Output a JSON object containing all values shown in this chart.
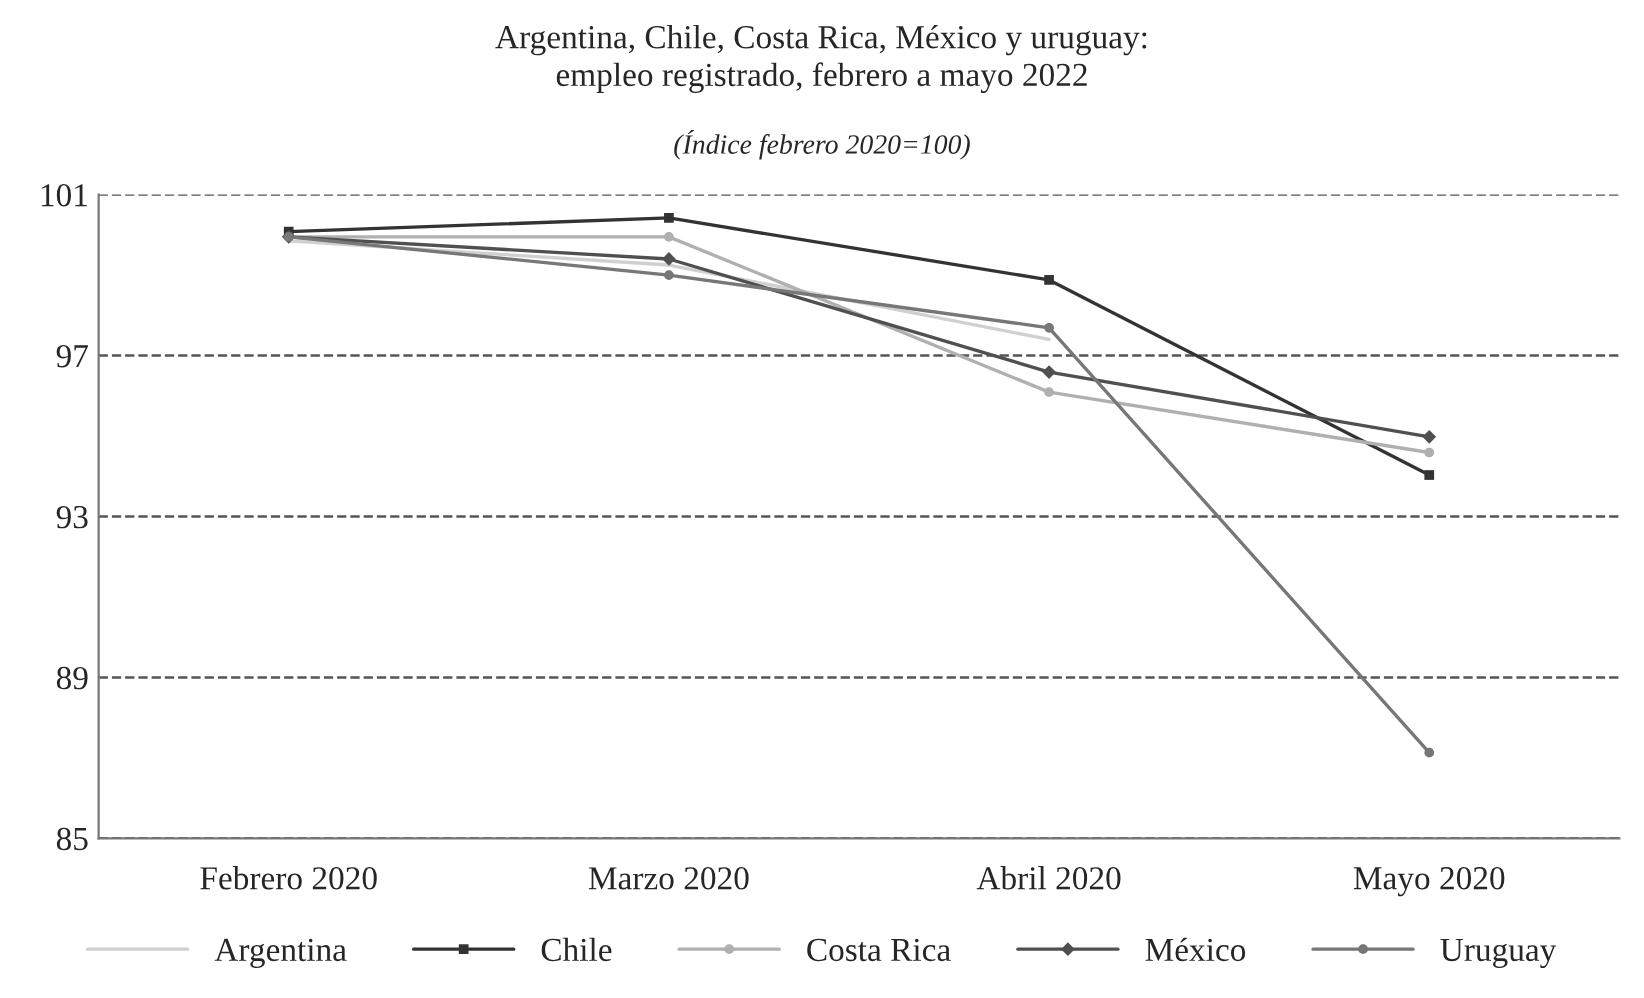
{
  "chart_data": {
    "type": "line",
    "title": "Argentina, Chile, Costa Rica, México y uruguay:\nempleo registrado, febrero a mayo 2022",
    "subtitle": "(Índice febrero 2020=100)",
    "categories": [
      "Febrero 2020",
      "Marzo 2020",
      "Abril 2020",
      "Mayo 2020"
    ],
    "series": [
      {
        "name": "Argentina",
        "color": "#d0d0d0",
        "marker": "none",
        "values": [
          99.85,
          99.25,
          97.4,
          null
        ]
      },
      {
        "name": "Chile",
        "color": "#333333",
        "marker": "square",
        "values": [
          100.08,
          100.42,
          98.88,
          94.03
        ]
      },
      {
        "name": "Costa Rica",
        "color": "#b0b0b0",
        "marker": "circle",
        "values": [
          99.95,
          99.95,
          96.09,
          94.59
        ]
      },
      {
        "name": "México",
        "color": "#505050",
        "marker": "diamond",
        "values": [
          99.95,
          99.4,
          96.59,
          94.98
        ]
      },
      {
        "name": "Uruguay",
        "color": "#777777",
        "marker": "circle",
        "values": [
          99.95,
          99.0,
          97.69,
          87.13
        ]
      }
    ],
    "ylim": [
      85,
      101
    ],
    "yticks": [
      85,
      89,
      93,
      97,
      101
    ],
    "grid": "y",
    "legend": "bottom",
    "line_style": "solid"
  }
}
